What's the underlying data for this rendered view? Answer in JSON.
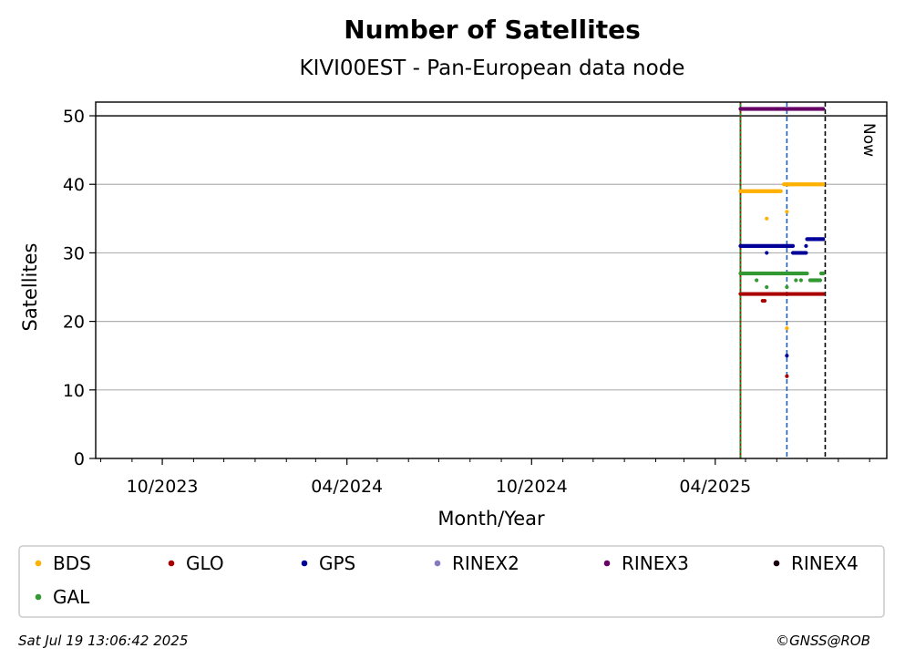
{
  "chart_data": {
    "type": "scatter",
    "title": "Number of Satellites",
    "subtitle": "KIVI00EST - Pan-European data node",
    "xlabel": "Month/Year",
    "ylabel": "Satellites",
    "ylim": [
      0,
      52
    ],
    "xlim": [
      "2023-07-27",
      "2025-09-18"
    ],
    "x_tick_labels": [
      "10/2023",
      "04/2024",
      "10/2024",
      "04/2025"
    ],
    "x_tick_dates": [
      "2023-10-01",
      "2024-04-01",
      "2024-10-01",
      "2025-04-01"
    ],
    "y_ticks": [
      0,
      10,
      20,
      30,
      40,
      50
    ],
    "grid": "y",
    "legend_position": "bottom",
    "reference_lines": {
      "horizontal_y": 50,
      "rinex_change_date": "2025-04-26",
      "config_change_date": "2025-06-11",
      "now_date": "2025-07-19",
      "now_label": "Now"
    },
    "series": [
      {
        "name": "BDS",
        "color": "#ffb000",
        "segments": [
          {
            "from": "2025-04-26",
            "to": "2025-06-05",
            "value": 39
          },
          {
            "from": "2025-06-08",
            "to": "2025-07-17",
            "value": 40
          }
        ],
        "outliers": [
          {
            "date": "2025-05-22",
            "value": 35
          },
          {
            "date": "2025-06-11",
            "value": 36
          },
          {
            "date": "2025-06-11",
            "value": 19
          }
        ]
      },
      {
        "name": "GLO",
        "color": "#aa0000",
        "segments": [
          {
            "from": "2025-04-26",
            "to": "2025-07-17",
            "value": 24
          }
        ],
        "outliers": [
          {
            "date": "2025-05-18",
            "value": 23
          },
          {
            "date": "2025-05-20",
            "value": 23
          },
          {
            "date": "2025-06-11",
            "value": 12
          }
        ]
      },
      {
        "name": "GPS",
        "color": "#000099",
        "segments": [
          {
            "from": "2025-04-26",
            "to": "2025-06-17",
            "value": 31
          },
          {
            "from": "2025-06-17",
            "to": "2025-06-30",
            "value": 30
          },
          {
            "from": "2025-07-01",
            "to": "2025-07-17",
            "value": 32
          }
        ],
        "outliers": [
          {
            "date": "2025-05-22",
            "value": 30
          },
          {
            "date": "2025-06-11",
            "value": 15
          },
          {
            "date": "2025-06-30",
            "value": 31
          }
        ]
      },
      {
        "name": "RINEX2",
        "color": "#8878c0",
        "segments": [],
        "outliers": []
      },
      {
        "name": "RINEX3",
        "color": "#660066",
        "segments": [
          {
            "from": "2025-04-26",
            "to": "2025-07-17",
            "value": 51
          }
        ],
        "outliers": []
      },
      {
        "name": "RINEX4",
        "color": "#1a0010",
        "segments": [],
        "outliers": []
      },
      {
        "name": "GAL",
        "color": "#339933",
        "segments": [
          {
            "from": "2025-04-26",
            "to": "2025-07-01",
            "value": 27
          },
          {
            "from": "2025-07-04",
            "to": "2025-07-14",
            "value": 26
          },
          {
            "from": "2025-07-15",
            "to": "2025-07-17",
            "value": 27
          }
        ],
        "outliers": [
          {
            "date": "2025-05-12",
            "value": 26
          },
          {
            "date": "2025-05-22",
            "value": 25
          },
          {
            "date": "2025-06-11",
            "value": 25
          },
          {
            "date": "2025-06-20",
            "value": 26
          },
          {
            "date": "2025-06-25",
            "value": 26
          }
        ]
      }
    ]
  },
  "footer": {
    "timestamp": "Sat Jul 19 13:06:42 2025",
    "copyright": "©GNSS@ROB"
  }
}
